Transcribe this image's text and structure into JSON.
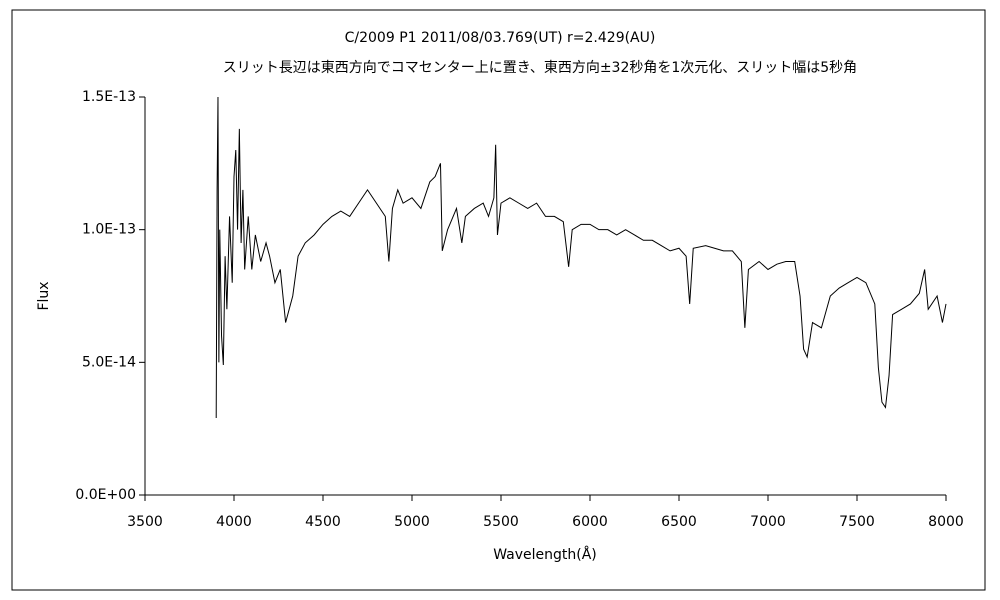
{
  "chart_data": {
    "type": "line",
    "title": "C/2009 P1    2011/08/03.769(UT)    r=2.429(AU)",
    "subtitle": "スリット長辺は東西方向でコマセンター上に置き、東西方向±32秒角を1次元化、スリット幅は5秒角",
    "xlabel": "Wavelength(Å)",
    "ylabel": "Flux",
    "xlim": [
      3500,
      8000
    ],
    "xticks": [
      3500,
      4000,
      4500,
      5000,
      5500,
      6000,
      6500,
      7000,
      7500,
      8000
    ],
    "ylim": [
      0,
      1.5e-13
    ],
    "yticks": [
      {
        "value": 0,
        "label": "0.0E+00"
      },
      {
        "value": 5e-14,
        "label": "5.0E-14"
      },
      {
        "value": 1e-13,
        "label": "1.0E-13"
      },
      {
        "value": 1.5e-13,
        "label": "1.5E-13"
      }
    ],
    "grid": false,
    "color": "#000000",
    "x": [
      3900,
      3905,
      3910,
      3915,
      3920,
      3930,
      3940,
      3950,
      3960,
      3975,
      3990,
      4000,
      4010,
      4020,
      4030,
      4040,
      4050,
      4060,
      4080,
      4100,
      4120,
      4150,
      4180,
      4200,
      4230,
      4260,
      4290,
      4310,
      4330,
      4360,
      4400,
      4450,
      4500,
      4550,
      4600,
      4650,
      4700,
      4750,
      4800,
      4850,
      4870,
      4890,
      4920,
      4950,
      5000,
      5050,
      5100,
      5130,
      5160,
      5170,
      5200,
      5250,
      5280,
      5300,
      5350,
      5400,
      5430,
      5460,
      5470,
      5480,
      5500,
      5550,
      5600,
      5650,
      5700,
      5750,
      5800,
      5850,
      5880,
      5900,
      5950,
      6000,
      6050,
      6100,
      6150,
      6200,
      6250,
      6300,
      6350,
      6400,
      6450,
      6500,
      6540,
      6560,
      6580,
      6650,
      6700,
      6750,
      6800,
      6850,
      6870,
      6890,
      6950,
      7000,
      7050,
      7100,
      7150,
      7180,
      7200,
      7220,
      7250,
      7300,
      7350,
      7400,
      7450,
      7500,
      7550,
      7600,
      7620,
      7640,
      7660,
      7680,
      7700,
      7750,
      7800,
      7850,
      7880,
      7900,
      7950,
      7980,
      8000
    ],
    "values": [
      2.9e-14,
      1.15e-13,
      1.5e-13,
      5e-14,
      1e-13,
      6e-14,
      4.9e-14,
      9e-14,
      7e-14,
      1.05e-13,
      8e-14,
      1.2e-13,
      1.3e-13,
      1e-13,
      1.38e-13,
      9.5e-14,
      1.15e-13,
      8.5e-14,
      1.05e-13,
      8.5e-14,
      9.8e-14,
      8.8e-14,
      9.5e-14,
      9e-14,
      8e-14,
      8.5e-14,
      6.5e-14,
      7e-14,
      7.5e-14,
      9e-14,
      9.5e-14,
      9.8e-14,
      1.02e-13,
      1.05e-13,
      1.07e-13,
      1.05e-13,
      1.1e-13,
      1.15e-13,
      1.1e-13,
      1.05e-13,
      8.8e-14,
      1.08e-13,
      1.15e-13,
      1.1e-13,
      1.12e-13,
      1.08e-13,
      1.18e-13,
      1.2e-13,
      1.25e-13,
      9.2e-14,
      1e-13,
      1.08e-13,
      9.5e-14,
      1.05e-13,
      1.08e-13,
      1.1e-13,
      1.05e-13,
      1.12e-13,
      1.32e-13,
      9.8e-14,
      1.1e-13,
      1.12e-13,
      1.1e-13,
      1.08e-13,
      1.1e-13,
      1.05e-13,
      1.05e-13,
      1.03e-13,
      8.6e-14,
      1e-13,
      1.02e-13,
      1.02e-13,
      1e-13,
      1e-13,
      9.8e-14,
      1e-13,
      9.8e-14,
      9.6e-14,
      9.6e-14,
      9.4e-14,
      9.2e-14,
      9.3e-14,
      9e-14,
      7.2e-14,
      9.3e-14,
      9.4e-14,
      9.3e-14,
      9.2e-14,
      9.2e-14,
      8.8e-14,
      6.3e-14,
      8.5e-14,
      8.8e-14,
      8.5e-14,
      8.7e-14,
      8.8e-14,
      8.8e-14,
      7.5e-14,
      5.5e-14,
      5.2e-14,
      6.5e-14,
      6.3e-14,
      7.5e-14,
      7.8e-14,
      8e-14,
      8.2e-14,
      8e-14,
      7.2e-14,
      4.8e-14,
      3.5e-14,
      3.3e-14,
      4.5e-14,
      6.8e-14,
      7e-14,
      7.2e-14,
      7.6e-14,
      8.5e-14,
      7e-14,
      7.5e-14,
      6.5e-14,
      7.2e-14
    ]
  }
}
